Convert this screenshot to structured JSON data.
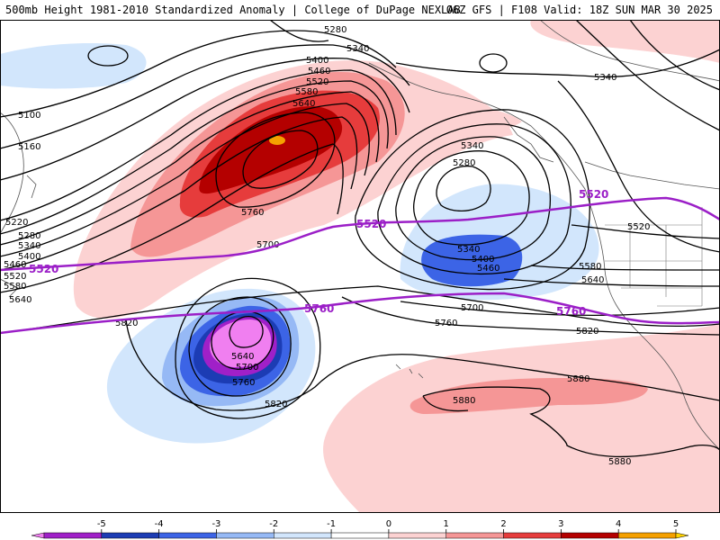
{
  "header": {
    "title": "500mb Height 1981-2010 Standardized Anomaly | College of DuPage NEXLAB",
    "run_info": "06Z GFS | F108 Valid: 18Z SUN MAR 30 2025"
  },
  "contours": {
    "c5100": "5100",
    "c5160": "5160",
    "c5220": "5220",
    "c5280a": "5280",
    "c5340a": "5340",
    "c5400a": "5400",
    "c5460a": "5460",
    "c5520a": "5520",
    "c5580a": "5580",
    "c5640a": "5640",
    "c5280top": "5280",
    "c5340top": "5340",
    "c5400top": "5400",
    "c5460top": "5460",
    "c5520top": "5520",
    "c5580top": "5580",
    "c5640top": "5640",
    "c5760low": "5760",
    "c5700low": "5700",
    "c5340ak": "5340",
    "c5340nw": "5340",
    "c5280nw": "5280",
    "c5340lo": "5340",
    "c5400lo": "5400",
    "c5460lo": "5460",
    "c5520e": "5520",
    "c5580e": "5580",
    "c5640e": "5640",
    "c5700e": "5700",
    "c5760e": "5760",
    "c5820e": "5820",
    "c5820w": "5820",
    "c5640c": "5640",
    "c5700c": "5700",
    "c5760c": "5760",
    "c5820c": "5820",
    "c5880a": "5880",
    "c5880b": "5880",
    "c5880c": "5880"
  },
  "purple_labels": {
    "p5520a": "5520",
    "p5520b": "5520",
    "p5520c": "5520",
    "p5760a": "5760",
    "p5760b": "5760"
  },
  "colorbar": {
    "ticks": [
      "-5",
      "-4",
      "-3",
      "-2",
      "-1",
      "0",
      "1",
      "2",
      "3",
      "4",
      "5"
    ],
    "colors": [
      "#f07ff0",
      "#a020c8",
      "#1c3cb4",
      "#3c64e6",
      "#96b9f5",
      "#d2e6fc",
      "#ffffff",
      "#fcd2d2",
      "#f59696",
      "#e63c3c",
      "#b40000",
      "#f5a000",
      "#ffd200"
    ]
  }
}
